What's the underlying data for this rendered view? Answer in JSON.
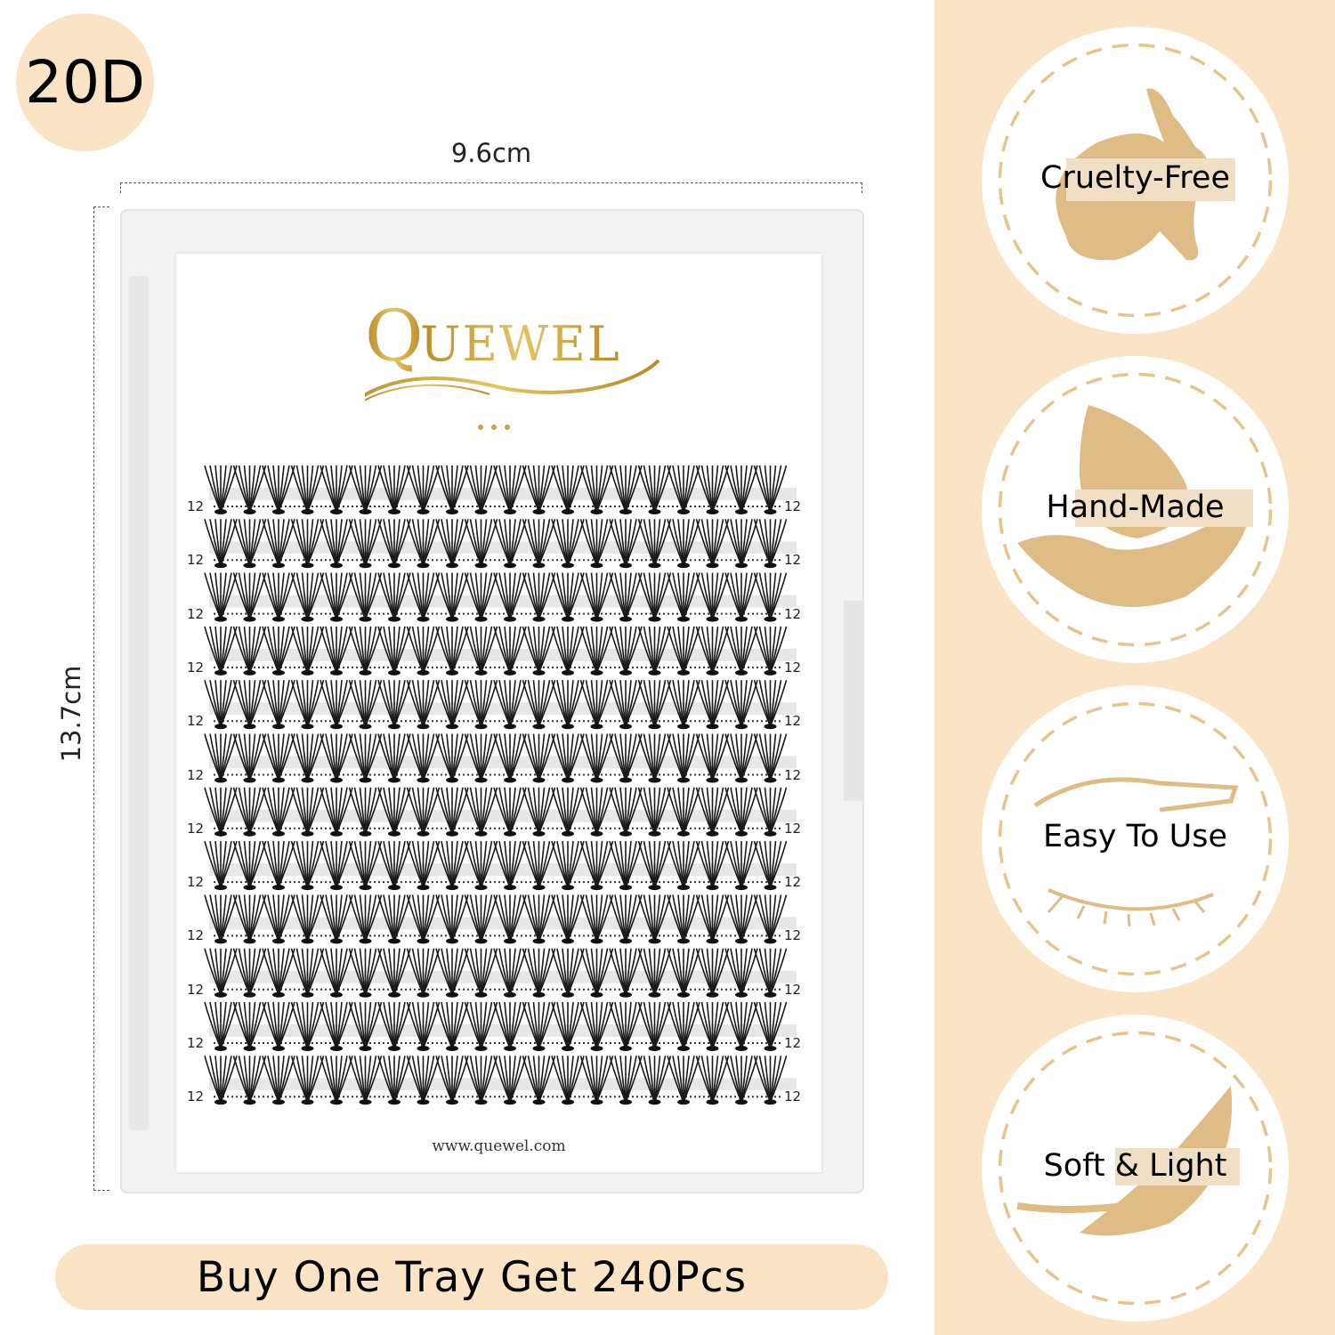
{
  "badge": "20D",
  "dimensions": {
    "width": "9.6cm",
    "height": "13.7cm"
  },
  "card": {
    "brand": "QUEWEL",
    "url": "www.quewel.com",
    "row_labels": [
      "12",
      "12",
      "12",
      "12",
      "12",
      "12",
      "12",
      "12",
      "12",
      "12",
      "12",
      "12"
    ],
    "clusters_per_row": 20
  },
  "banner": "Buy One Tray Get 240Pcs",
  "features": [
    {
      "label": "Cruelty-Free",
      "icon": "rabbit-icon"
    },
    {
      "label": "Hand-Made",
      "icon": "hand-icon"
    },
    {
      "label": "Easy To Use",
      "icon": "eye-tweezers-icon"
    },
    {
      "label": "Soft & Light",
      "icon": "feather-icon"
    }
  ],
  "colors": {
    "accent": "#fbe4c5",
    "icon": "#dfbb85",
    "dash": "#e8c38b",
    "gold": "#c9a13b"
  }
}
